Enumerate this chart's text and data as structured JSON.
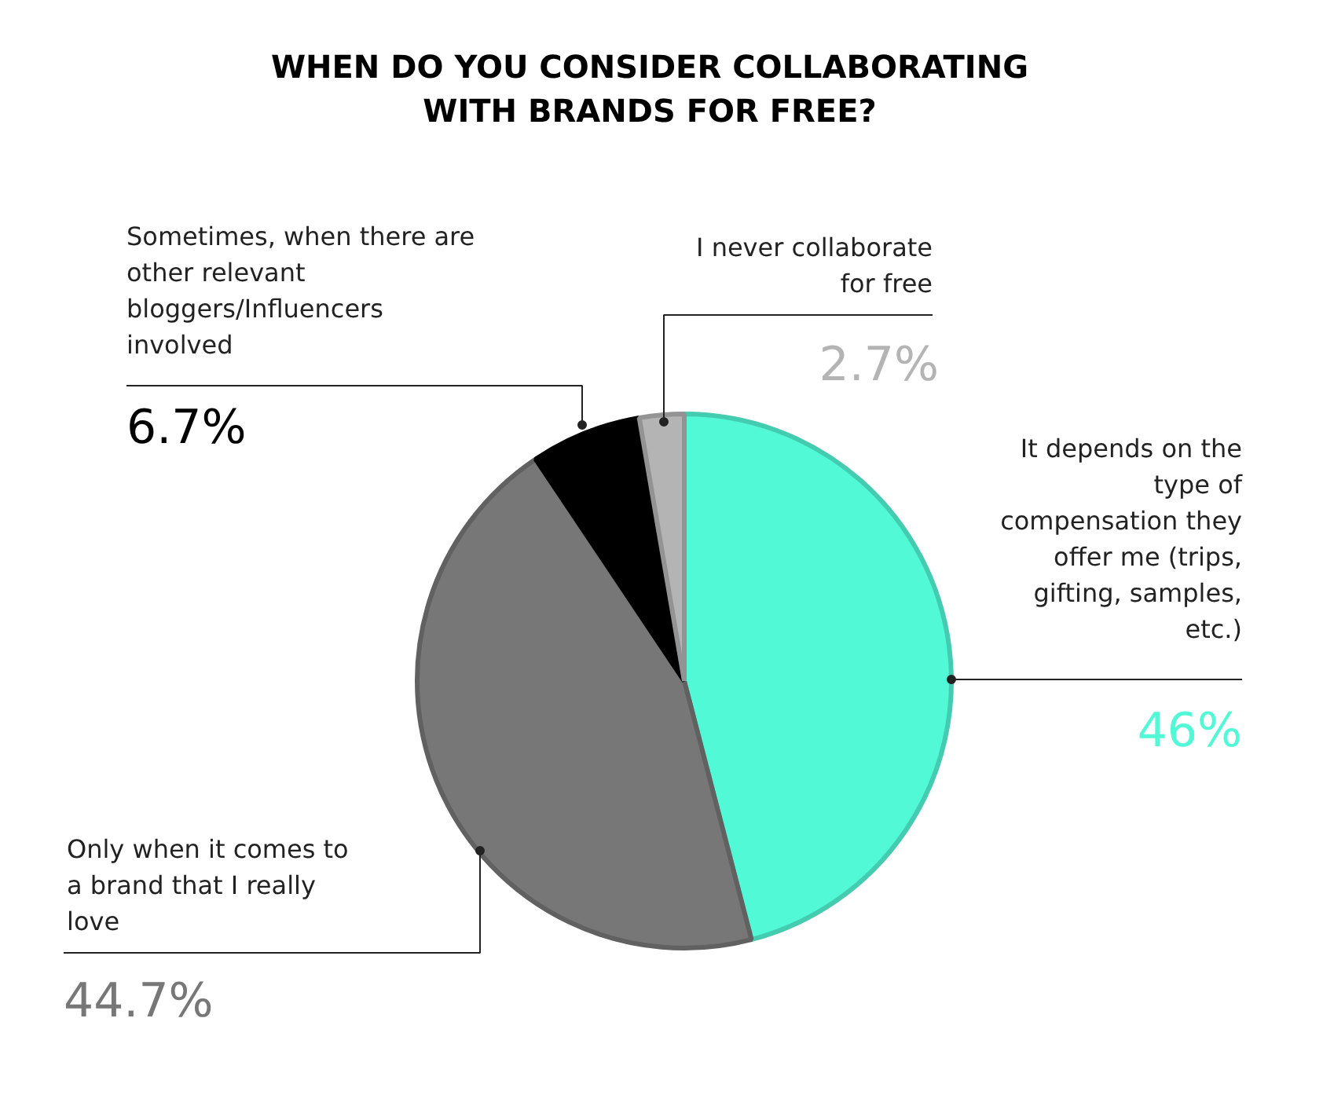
{
  "chart_data": {
    "type": "pie",
    "title": "WHEN DO YOU CONSIDER COLLABORATING\nWITH BRANDS FOR FREE?",
    "categories": [
      "It depends on the\ntype of\ncompensation they\noffer me (trips,\ngifting, samples,\netc.)",
      "Only when it comes to\na brand that I really\nlove",
      "Sometimes, when there are\nother relevant\nbloggers/Influencers\ninvolved",
      "I never collaborate\nfor free"
    ],
    "values": [
      46,
      44.7,
      6.7,
      2.7
    ],
    "colors": [
      "#52f9d6",
      "#777777",
      "#000000",
      "#b4b4b4"
    ],
    "value_labels": [
      "46%",
      "44.7%",
      "6.7%",
      "2.7%"
    ]
  }
}
